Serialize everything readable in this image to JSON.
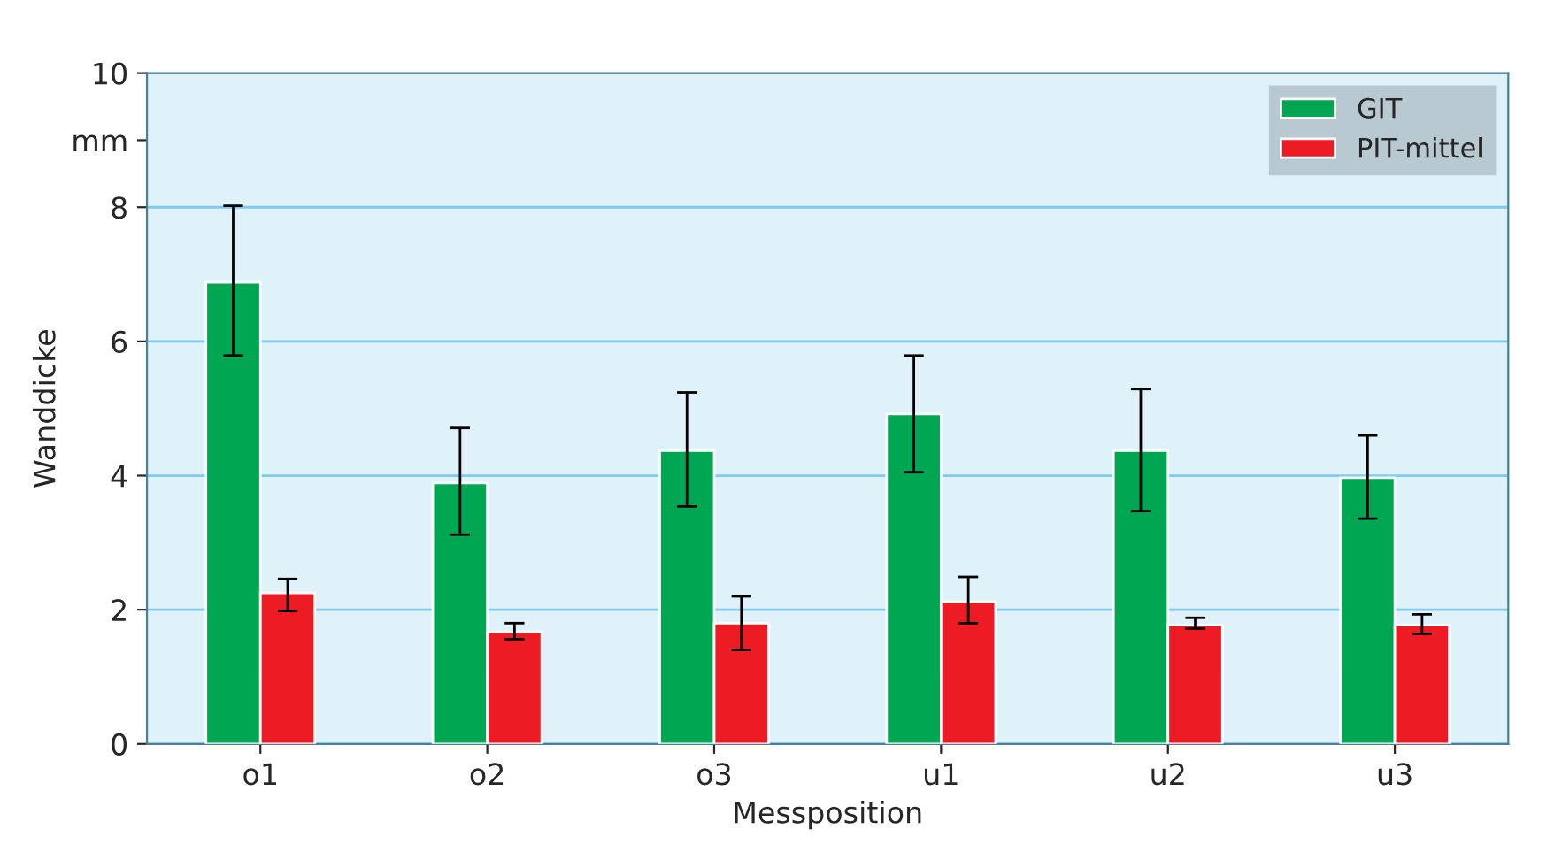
{
  "chart_data": {
    "type": "bar",
    "xlabel": "Messposition",
    "ylabel": "Wanddicke",
    "categories": [
      "o1",
      "o2",
      "o3",
      "u1",
      "u2",
      "u3"
    ],
    "series": [
      {
        "name": "GIT",
        "color": "#00a651",
        "values": [
          6.88,
          3.89,
          4.37,
          4.92,
          4.37,
          3.97
        ],
        "errors": [
          [
            5.79,
            8.02
          ],
          [
            3.12,
            4.71
          ],
          [
            3.54,
            5.24
          ],
          [
            4.05,
            5.79
          ],
          [
            3.47,
            5.29
          ],
          [
            3.36,
            4.6
          ]
        ]
      },
      {
        "name": "PIT-mittel",
        "color": "#ed1c24",
        "values": [
          2.25,
          1.67,
          1.8,
          2.12,
          1.77,
          1.77
        ],
        "errors": [
          [
            1.98,
            2.46
          ],
          [
            1.56,
            1.8
          ],
          [
            1.4,
            2.2
          ],
          [
            1.8,
            2.49
          ],
          [
            1.72,
            1.88
          ],
          [
            1.64,
            1.93
          ]
        ]
      }
    ],
    "ylim": [
      0,
      10
    ],
    "yticks": [
      0,
      2,
      4,
      6,
      8,
      {
        "value": 9,
        "label": "mm"
      },
      10
    ],
    "grid": "y",
    "legend": "top right"
  }
}
